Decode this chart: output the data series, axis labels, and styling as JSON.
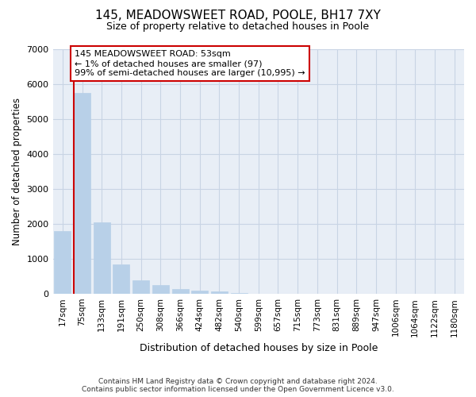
{
  "title_line1": "145, MEADOWSWEET ROAD, POOLE, BH17 7XY",
  "title_line2": "Size of property relative to detached houses in Poole",
  "xlabel": "Distribution of detached houses by size in Poole",
  "ylabel": "Number of detached properties",
  "footer_line1": "Contains HM Land Registry data © Crown copyright and database right 2024.",
  "footer_line2": "Contains public sector information licensed under the Open Government Licence v3.0.",
  "annotation_line1": "145 MEADOWSWEET ROAD: 53sqm",
  "annotation_line2": "← 1% of detached houses are smaller (97)",
  "annotation_line3": "99% of semi-detached houses are larger (10,995) →",
  "bar_color": "#b8d0e8",
  "vline_color": "#cc0000",
  "annotation_box_edgecolor": "#cc0000",
  "grid_color": "#c8d4e4",
  "bg_color": "#e8eef6",
  "categories": [
    "17sqm",
    "75sqm",
    "133sqm",
    "191sqm",
    "250sqm",
    "308sqm",
    "366sqm",
    "424sqm",
    "482sqm",
    "540sqm",
    "599sqm",
    "657sqm",
    "715sqm",
    "773sqm",
    "831sqm",
    "889sqm",
    "947sqm",
    "1006sqm",
    "1064sqm",
    "1122sqm",
    "1180sqm"
  ],
  "values": [
    1800,
    5750,
    2050,
    830,
    380,
    250,
    130,
    95,
    60,
    20,
    8,
    4,
    2,
    1,
    1,
    0,
    0,
    0,
    0,
    0,
    0
  ],
  "ylim": [
    0,
    7000
  ],
  "yticks": [
    0,
    1000,
    2000,
    3000,
    4000,
    5000,
    6000,
    7000
  ],
  "vline_x_index": 0.575
}
